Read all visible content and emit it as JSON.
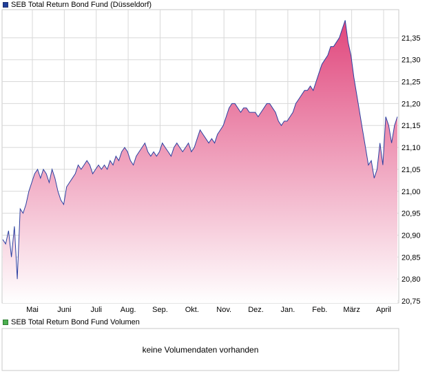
{
  "legend": {
    "price_label": "SEB Total Return Bond Fund (Düsseldorf)",
    "volume_label": "SEB Total Return Bond Fund Volumen",
    "price_color": "#1f3f9a",
    "volume_color": "#4caf50"
  },
  "volume": {
    "message": "keine Volumendaten vorhanden"
  },
  "colors": {
    "line": "#2a3fa0",
    "fill_top": "#e0467c",
    "fill_bottom": "#ffffff",
    "grid": "#d8d8d8"
  },
  "chart_data": {
    "type": "area",
    "title": "SEB Total Return Bond Fund (Düsseldorf)",
    "xlabel": "",
    "ylabel": "",
    "grid": true,
    "ylim": [
      20.75,
      21.4
    ],
    "x_ticks": [
      "Mai",
      "Juni",
      "Juli",
      "Aug.",
      "Sep.",
      "Okt.",
      "Nov.",
      "Dez.",
      "Jan.",
      "Feb.",
      "März",
      "April"
    ],
    "y_ticks": [
      "21,35",
      "21,30",
      "21,25",
      "21,20",
      "21,15",
      "21,10",
      "21,05",
      "21,00",
      "20,95",
      "20,90",
      "20,85",
      "20,80",
      "20,75"
    ],
    "series": [
      {
        "values": [
          20.89,
          20.88,
          20.91,
          20.85,
          20.92,
          20.8,
          20.96,
          20.95,
          20.97,
          21.0,
          21.02,
          21.04,
          21.05,
          21.03,
          21.05,
          21.04,
          21.02,
          21.05,
          21.03,
          21.0,
          20.98,
          20.97,
          21.01,
          21.02,
          21.03,
          21.04,
          21.06,
          21.05,
          21.06,
          21.07,
          21.06,
          21.04,
          21.05,
          21.06,
          21.05,
          21.06,
          21.05,
          21.07,
          21.06,
          21.08,
          21.07,
          21.09,
          21.1,
          21.09,
          21.07,
          21.06,
          21.08,
          21.09,
          21.1,
          21.11,
          21.09,
          21.08,
          21.09,
          21.08,
          21.09,
          21.11,
          21.1,
          21.09,
          21.08,
          21.1,
          21.11,
          21.1,
          21.09,
          21.1,
          21.11,
          21.09,
          21.1,
          21.12,
          21.14,
          21.13,
          21.12,
          21.11,
          21.12,
          21.11,
          21.13,
          21.14,
          21.15,
          21.17,
          21.19,
          21.2,
          21.2,
          21.19,
          21.18,
          21.19,
          21.19,
          21.18,
          21.18,
          21.18,
          21.17,
          21.18,
          21.19,
          21.2,
          21.2,
          21.19,
          21.18,
          21.16,
          21.15,
          21.16,
          21.16,
          21.17,
          21.18,
          21.2,
          21.21,
          21.22,
          21.23,
          21.23,
          21.24,
          21.23,
          21.25,
          21.27,
          21.29,
          21.3,
          21.31,
          21.33,
          21.33,
          21.34,
          21.35,
          21.37,
          21.39,
          21.34,
          21.31,
          21.26,
          21.22,
          21.18,
          21.14,
          21.1,
          21.06,
          21.07,
          21.03,
          21.05,
          21.11,
          21.06,
          21.17,
          21.15,
          21.11,
          21.15,
          21.17
        ]
      }
    ]
  }
}
